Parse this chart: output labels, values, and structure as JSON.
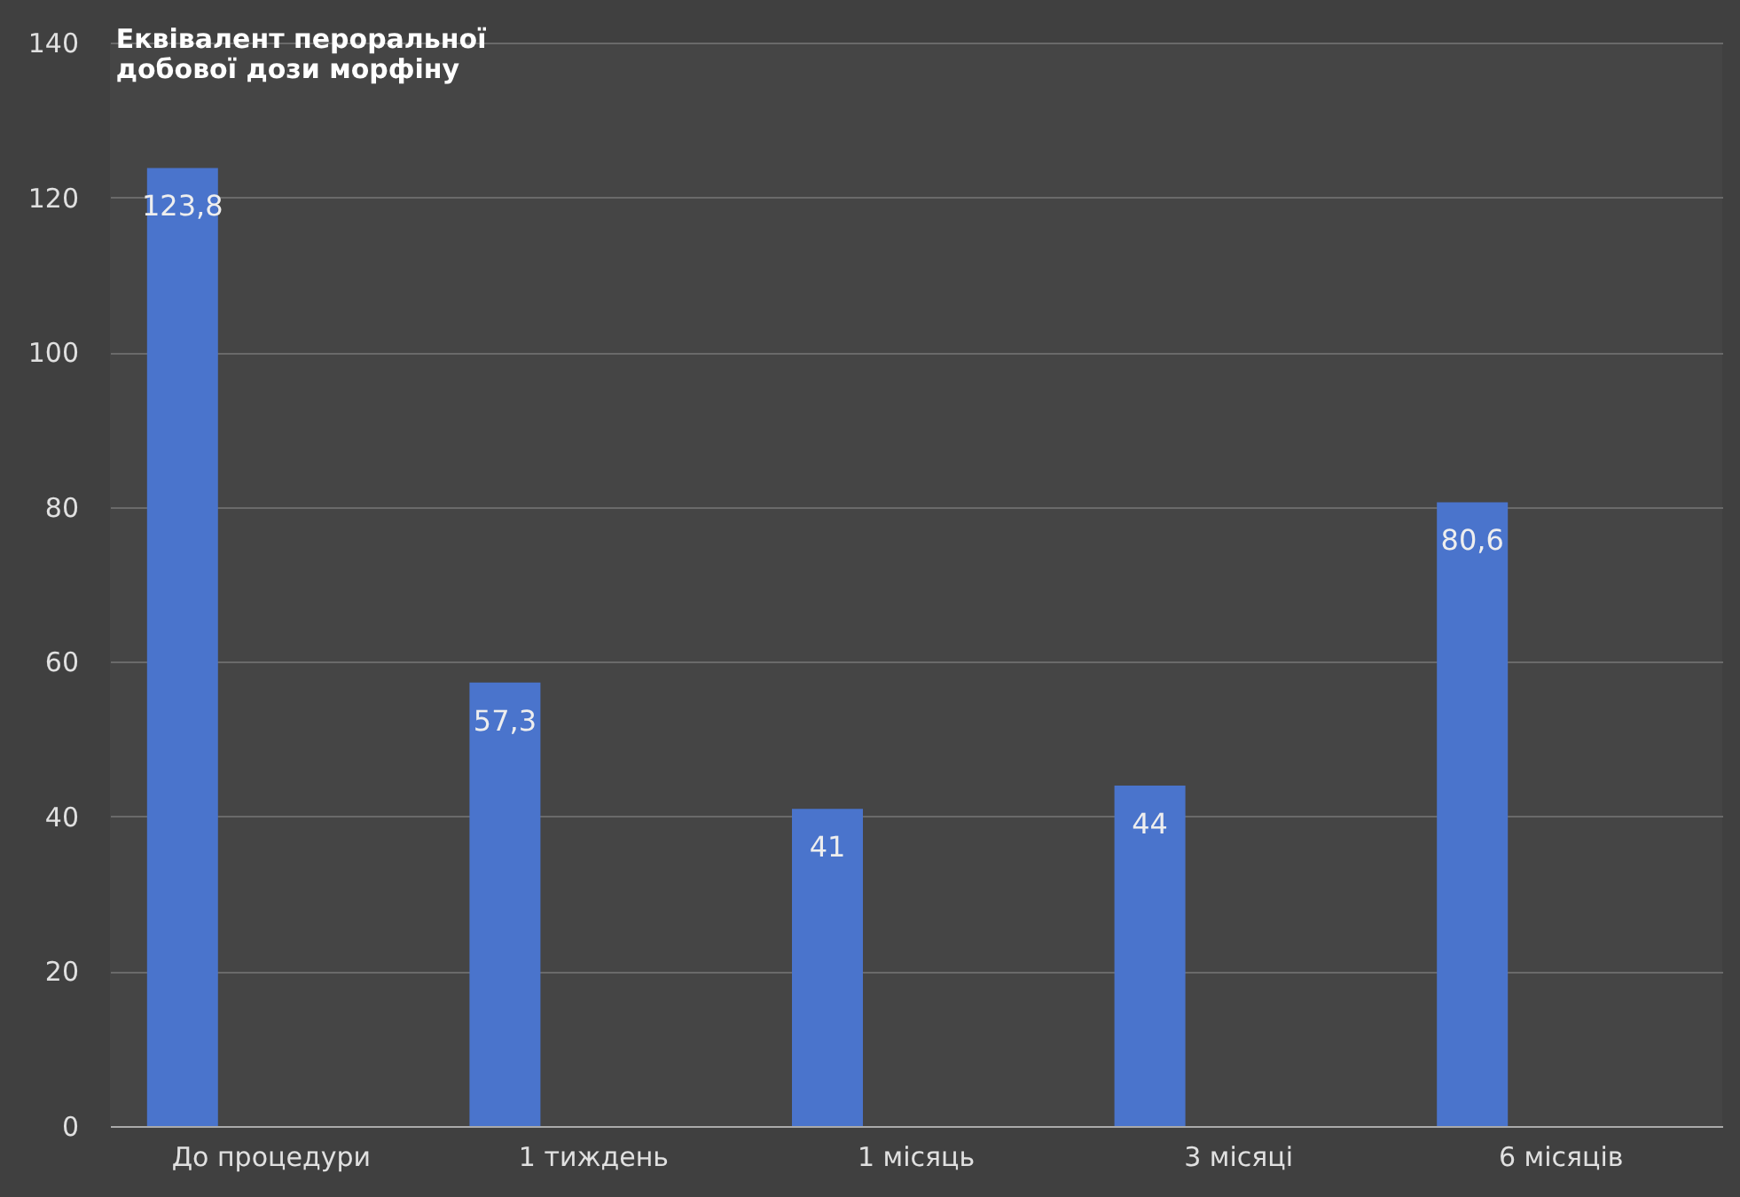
{
  "chart_data": {
    "type": "bar",
    "title": "Еквівалент пероральної\nдобової дози морфіну",
    "categories": [
      "До процедури",
      "1 тиждень",
      "1 місяць",
      "3 місяці",
      "6 місяців"
    ],
    "values": [
      123.8,
      57.3,
      41,
      44,
      80.6
    ],
    "value_labels": [
      "123,8",
      "57,3",
      "41",
      "44",
      "80,6"
    ],
    "color": "#4a74cc",
    "ylim": [
      0,
      140
    ],
    "yticks": [
      0,
      20,
      40,
      60,
      80,
      100,
      120,
      140
    ],
    "grid": "y"
  }
}
